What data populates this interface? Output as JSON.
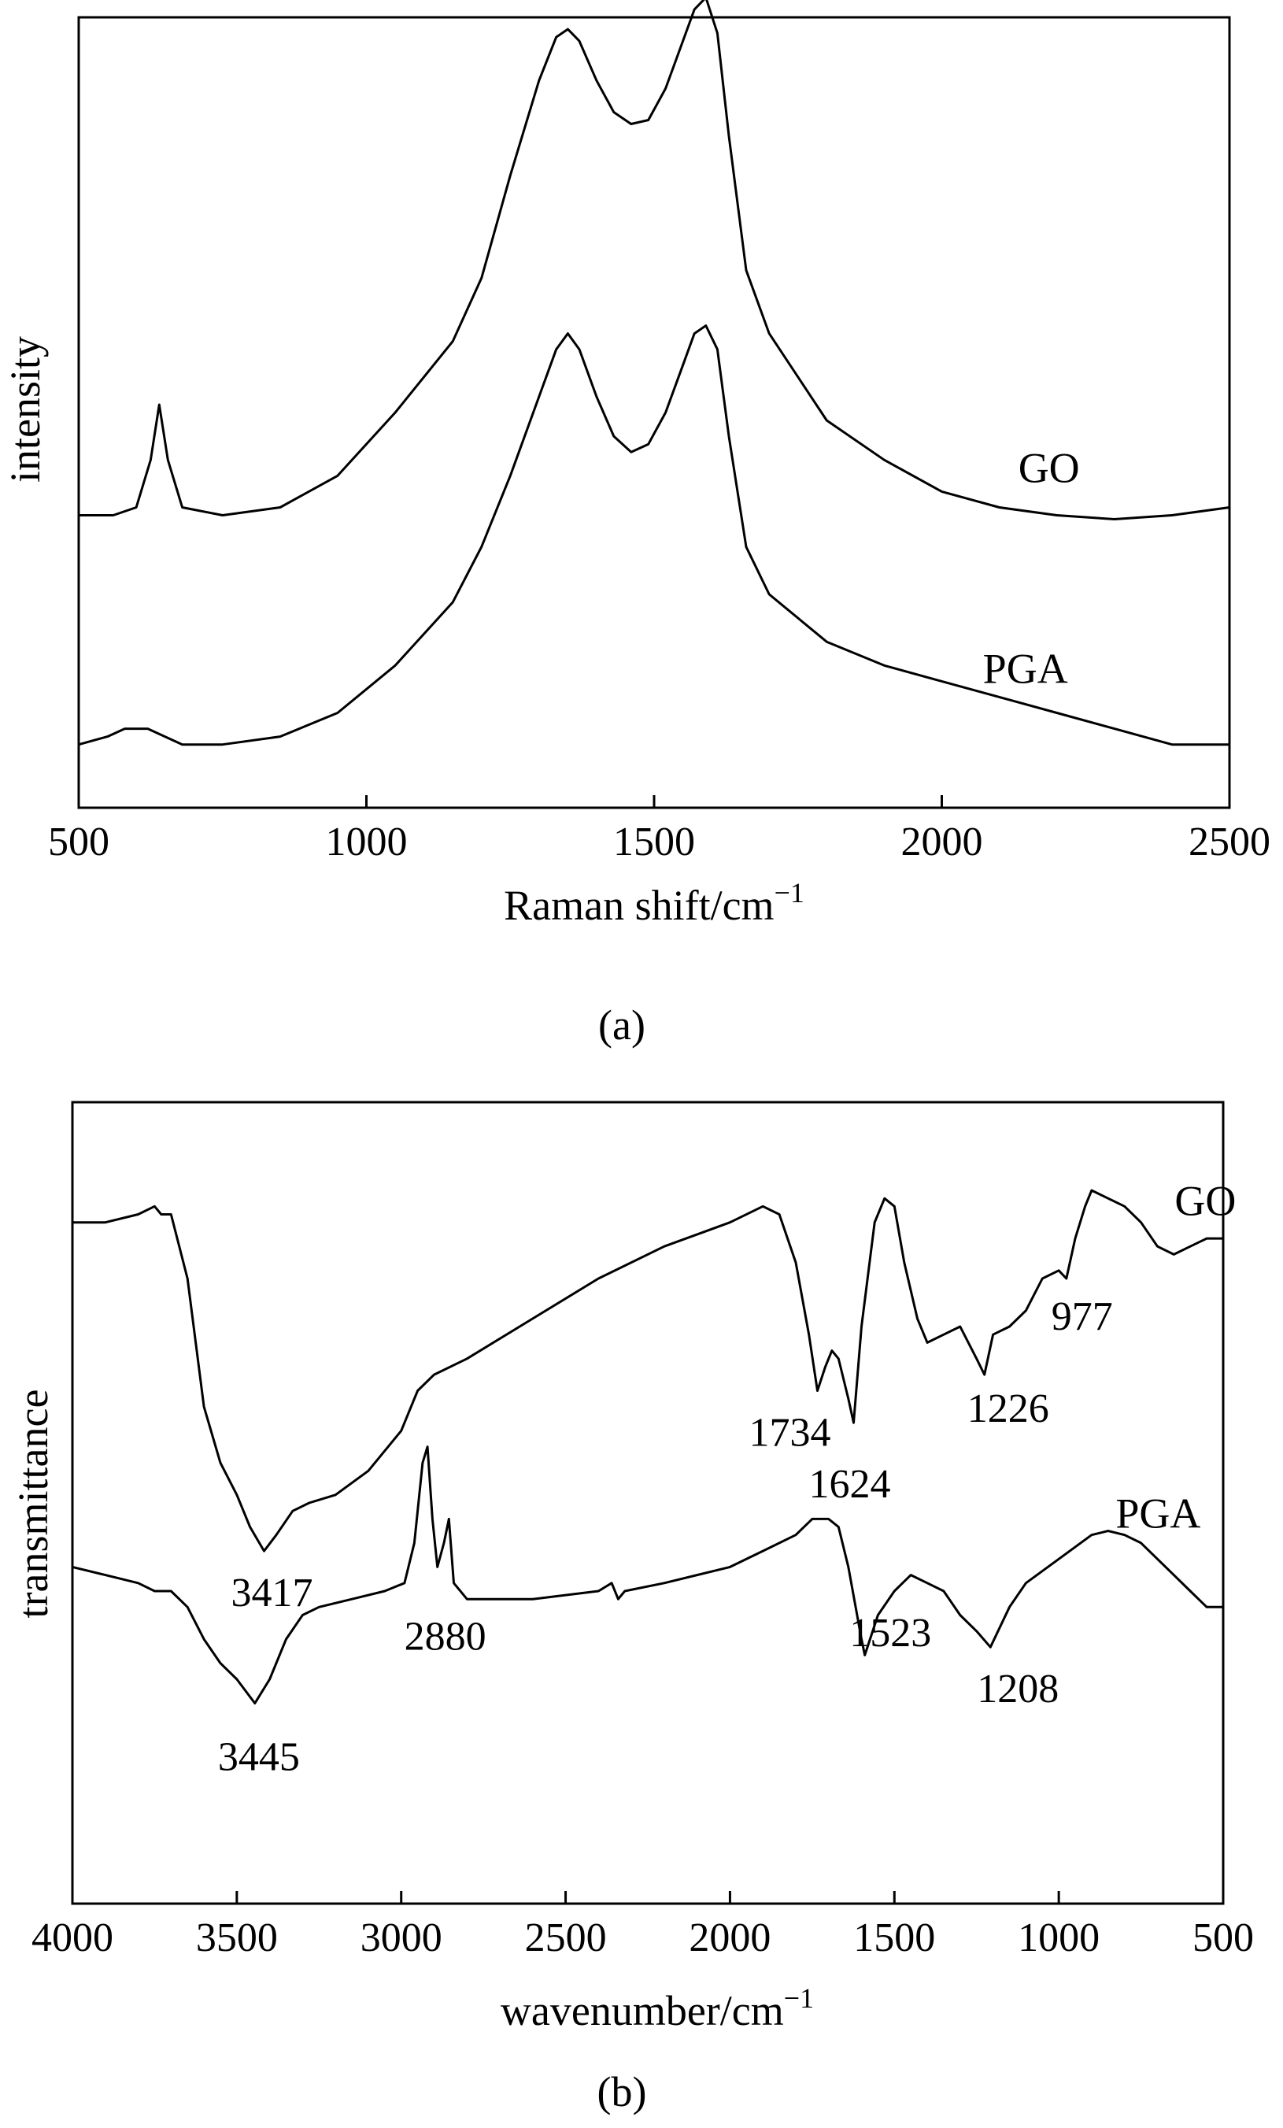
{
  "chart_data": [
    {
      "type": "line",
      "panel_label": "(a)",
      "xlabel": "Raman shift/cm",
      "xlabel_superscript": "−1",
      "ylabel": "intensity",
      "xlim": [
        500,
        2500
      ],
      "x_ticks": [
        500,
        1000,
        1500,
        2000,
        2500
      ],
      "y_ticks_shown": false,
      "grid": false,
      "series": [
        {
          "name": "GO",
          "points": [
            [
              500,
              0.37
            ],
            [
              560,
              0.37
            ],
            [
              600,
              0.38
            ],
            [
              625,
              0.44
            ],
            [
              640,
              0.51
            ],
            [
              655,
              0.44
            ],
            [
              680,
              0.38
            ],
            [
              750,
              0.37
            ],
            [
              850,
              0.38
            ],
            [
              950,
              0.42
            ],
            [
              1050,
              0.5
            ],
            [
              1150,
              0.59
            ],
            [
              1200,
              0.67
            ],
            [
              1250,
              0.8
            ],
            [
              1300,
              0.92
            ],
            [
              1330,
              0.975
            ],
            [
              1350,
              0.985
            ],
            [
              1370,
              0.97
            ],
            [
              1400,
              0.92
            ],
            [
              1430,
              0.88
            ],
            [
              1460,
              0.865
            ],
            [
              1490,
              0.87
            ],
            [
              1520,
              0.91
            ],
            [
              1550,
              0.97
            ],
            [
              1570,
              1.01
            ],
            [
              1590,
              1.025
            ],
            [
              1610,
              0.98
            ],
            [
              1630,
              0.85
            ],
            [
              1660,
              0.68
            ],
            [
              1700,
              0.6
            ],
            [
              1800,
              0.49
            ],
            [
              1900,
              0.44
            ],
            [
              2000,
              0.4
            ],
            [
              2100,
              0.38
            ],
            [
              2200,
              0.37
            ],
            [
              2300,
              0.365
            ],
            [
              2400,
              0.37
            ],
            [
              2500,
              0.38
            ]
          ]
        },
        {
          "name": "PGA",
          "points": [
            [
              500,
              0.08
            ],
            [
              550,
              0.09
            ],
            [
              580,
              0.1
            ],
            [
              620,
              0.1
            ],
            [
              680,
              0.08
            ],
            [
              750,
              0.08
            ],
            [
              850,
              0.09
            ],
            [
              950,
              0.12
            ],
            [
              1050,
              0.18
            ],
            [
              1150,
              0.26
            ],
            [
              1200,
              0.33
            ],
            [
              1250,
              0.42
            ],
            [
              1300,
              0.52
            ],
            [
              1330,
              0.58
            ],
            [
              1350,
              0.6
            ],
            [
              1370,
              0.58
            ],
            [
              1400,
              0.52
            ],
            [
              1430,
              0.47
            ],
            [
              1460,
              0.45
            ],
            [
              1490,
              0.46
            ],
            [
              1520,
              0.5
            ],
            [
              1550,
              0.56
            ],
            [
              1570,
              0.6
            ],
            [
              1590,
              0.61
            ],
            [
              1610,
              0.58
            ],
            [
              1630,
              0.47
            ],
            [
              1660,
              0.33
            ],
            [
              1700,
              0.27
            ],
            [
              1800,
              0.21
            ],
            [
              1900,
              0.18
            ],
            [
              2000,
              0.16
            ],
            [
              2100,
              0.14
            ],
            [
              2200,
              0.12
            ],
            [
              2300,
              0.1
            ],
            [
              2400,
              0.08
            ],
            [
              2500,
              0.08
            ]
          ]
        }
      ],
      "annotations": []
    },
    {
      "type": "line",
      "panel_label": "(b)",
      "xlabel": "wavenumber/cm",
      "xlabel_superscript": "−1",
      "ylabel": "transmittance",
      "xlim": [
        4000,
        500
      ],
      "x_ticks": [
        4000,
        3500,
        3000,
        2500,
        2000,
        1500,
        1000,
        500
      ],
      "y_ticks_shown": false,
      "grid": false,
      "series": [
        {
          "name": "GO",
          "points": [
            [
              4000,
              0.85
            ],
            [
              3900,
              0.85
            ],
            [
              3800,
              0.86
            ],
            [
              3750,
              0.87
            ],
            [
              3730,
              0.86
            ],
            [
              3700,
              0.86
            ],
            [
              3650,
              0.78
            ],
            [
              3600,
              0.62
            ],
            [
              3550,
              0.55
            ],
            [
              3500,
              0.51
            ],
            [
              3460,
              0.47
            ],
            [
              3417,
              0.44
            ],
            [
              3380,
              0.46
            ],
            [
              3330,
              0.49
            ],
            [
              3280,
              0.5
            ],
            [
              3200,
              0.51
            ],
            [
              3100,
              0.54
            ],
            [
              3000,
              0.59
            ],
            [
              2950,
              0.64
            ],
            [
              2900,
              0.66
            ],
            [
              2800,
              0.68
            ],
            [
              2600,
              0.73
            ],
            [
              2400,
              0.78
            ],
            [
              2200,
              0.82
            ],
            [
              2000,
              0.85
            ],
            [
              1900,
              0.87
            ],
            [
              1850,
              0.86
            ],
            [
              1800,
              0.8
            ],
            [
              1760,
              0.71
            ],
            [
              1734,
              0.64
            ],
            [
              1710,
              0.67
            ],
            [
              1690,
              0.69
            ],
            [
              1670,
              0.68
            ],
            [
              1640,
              0.63
            ],
            [
              1624,
              0.6
            ],
            [
              1600,
              0.72
            ],
            [
              1560,
              0.85
            ],
            [
              1530,
              0.88
            ],
            [
              1500,
              0.87
            ],
            [
              1470,
              0.8
            ],
            [
              1430,
              0.73
            ],
            [
              1400,
              0.7
            ],
            [
              1350,
              0.71
            ],
            [
              1300,
              0.72
            ],
            [
              1250,
              0.68
            ],
            [
              1226,
              0.66
            ],
            [
              1200,
              0.71
            ],
            [
              1150,
              0.72
            ],
            [
              1100,
              0.74
            ],
            [
              1050,
              0.78
            ],
            [
              1000,
              0.79
            ],
            [
              977,
              0.78
            ],
            [
              950,
              0.83
            ],
            [
              920,
              0.87
            ],
            [
              900,
              0.89
            ],
            [
              850,
              0.88
            ],
            [
              800,
              0.87
            ],
            [
              750,
              0.85
            ],
            [
              700,
              0.82
            ],
            [
              650,
              0.81
            ],
            [
              600,
              0.82
            ],
            [
              550,
              0.83
            ],
            [
              500,
              0.83
            ]
          ]
        },
        {
          "name": "PGA",
          "points": [
            [
              4000,
              0.42
            ],
            [
              3900,
              0.41
            ],
            [
              3800,
              0.4
            ],
            [
              3750,
              0.39
            ],
            [
              3700,
              0.39
            ],
            [
              3650,
              0.37
            ],
            [
              3600,
              0.33
            ],
            [
              3550,
              0.3
            ],
            [
              3500,
              0.28
            ],
            [
              3445,
              0.25
            ],
            [
              3400,
              0.28
            ],
            [
              3350,
              0.33
            ],
            [
              3300,
              0.36
            ],
            [
              3250,
              0.37
            ],
            [
              3150,
              0.38
            ],
            [
              3050,
              0.39
            ],
            [
              2990,
              0.4
            ],
            [
              2960,
              0.45
            ],
            [
              2935,
              0.55
            ],
            [
              2920,
              0.57
            ],
            [
              2905,
              0.48
            ],
            [
              2890,
              0.42
            ],
            [
              2870,
              0.45
            ],
            [
              2855,
              0.48
            ],
            [
              2840,
              0.4
            ],
            [
              2800,
              0.38
            ],
            [
              2600,
              0.38
            ],
            [
              2400,
              0.39
            ],
            [
              2360,
              0.4
            ],
            [
              2340,
              0.38
            ],
            [
              2320,
              0.39
            ],
            [
              2200,
              0.4
            ],
            [
              2000,
              0.42
            ],
            [
              1900,
              0.44
            ],
            [
              1800,
              0.46
            ],
            [
              1750,
              0.48
            ],
            [
              1700,
              0.48
            ],
            [
              1670,
              0.47
            ],
            [
              1640,
              0.42
            ],
            [
              1600,
              0.33
            ],
            [
              1590,
              0.31
            ],
            [
              1550,
              0.36
            ],
            [
              1500,
              0.39
            ],
            [
              1450,
              0.41
            ],
            [
              1400,
              0.4
            ],
            [
              1350,
              0.39
            ],
            [
              1300,
              0.36
            ],
            [
              1250,
              0.34
            ],
            [
              1208,
              0.32
            ],
            [
              1150,
              0.37
            ],
            [
              1100,
              0.4
            ],
            [
              1000,
              0.43
            ],
            [
              900,
              0.46
            ],
            [
              850,
              0.465
            ],
            [
              800,
              0.46
            ],
            [
              750,
              0.45
            ],
            [
              700,
              0.43
            ],
            [
              650,
              0.41
            ],
            [
              600,
              0.39
            ],
            [
              550,
              0.37
            ],
            [
              500,
              0.37
            ]
          ]
        }
      ],
      "annotations": [
        {
          "text": "3417",
          "series": "GO",
          "x": 3417
        },
        {
          "text": "1734",
          "series": "GO",
          "x": 1734
        },
        {
          "text": "1624",
          "series": "GO",
          "x": 1624
        },
        {
          "text": "1226",
          "series": "GO",
          "x": 1226
        },
        {
          "text": "977",
          "series": "GO",
          "x": 977
        },
        {
          "text": "3445",
          "series": "PGA",
          "x": 3445
        },
        {
          "text": "2880",
          "series": "PGA",
          "x": 2880
        },
        {
          "text": "1523",
          "series": "PGA",
          "x": 1523
        },
        {
          "text": "1208",
          "series": "PGA",
          "x": 1208
        }
      ]
    }
  ]
}
